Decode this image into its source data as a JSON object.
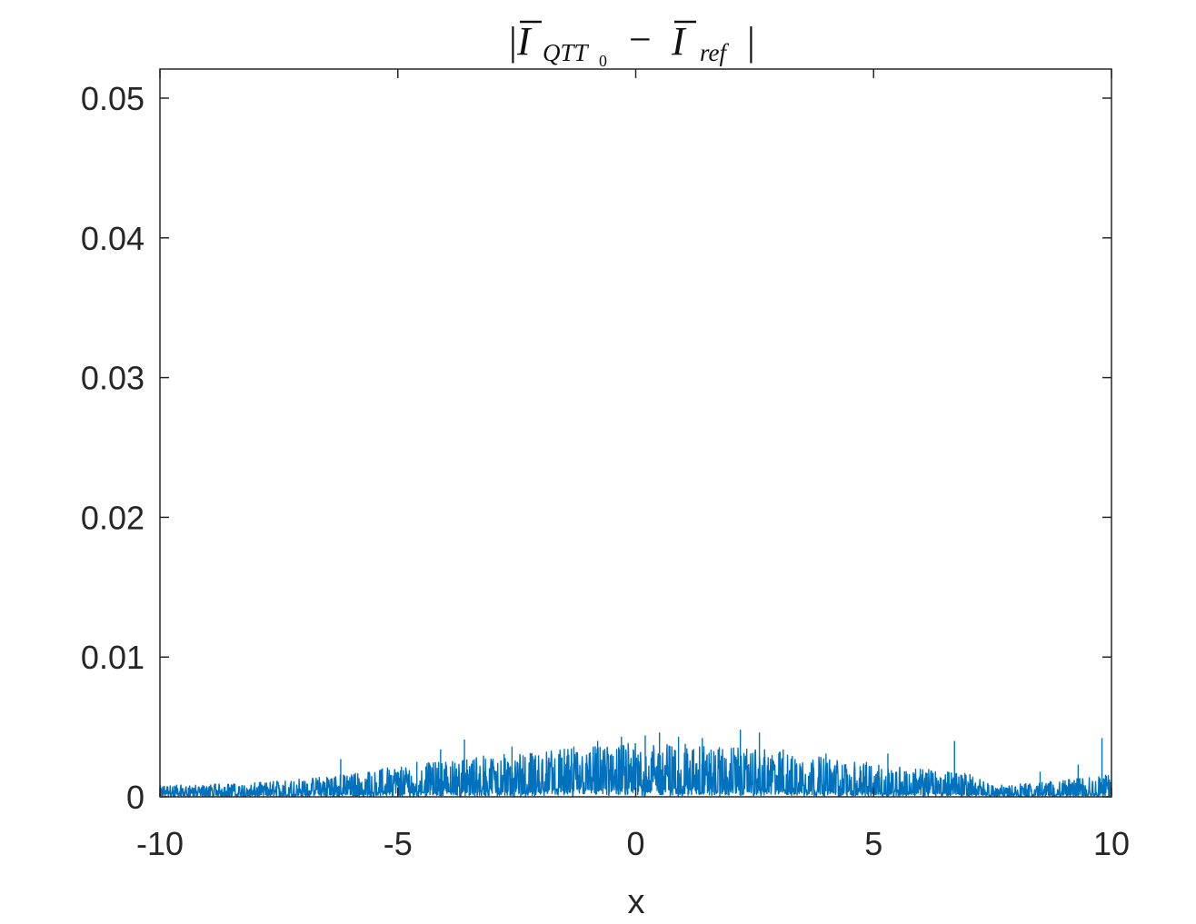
{
  "chart_data": {
    "type": "line",
    "title": {
      "open_bar": "|",
      "term1_symbol": "I",
      "term1_subscript": "QTT",
      "term1_subsubscript": "0",
      "operator": "−",
      "term2_symbol": "I",
      "term2_subscript": "ref",
      "close_bar": "|"
    },
    "xlabel": "x",
    "ylabel": "",
    "xlim": [
      -10,
      10
    ],
    "ylim": [
      0,
      0.052
    ],
    "xticks": [
      -10,
      -5,
      0,
      5,
      10
    ],
    "xtick_labels": [
      "-10",
      "-5",
      "0",
      "5",
      "10"
    ],
    "yticks": [
      0,
      0.01,
      0.02,
      0.03,
      0.04,
      0.05
    ],
    "ytick_labels": [
      "0",
      "0.01",
      "0.02",
      "0.03",
      "0.04",
      "0.05"
    ],
    "grid": false,
    "series": [
      {
        "color": "#0072BD",
        "envelope_x": [
          -10,
          -9,
          -8,
          -7,
          -6,
          -5,
          -4,
          -3,
          -2,
          -1,
          0,
          1,
          2,
          3,
          4,
          5,
          6,
          7,
          7.5,
          8,
          9,
          10
        ],
        "envelope_max": [
          0.0008,
          0.0009,
          0.001,
          0.0013,
          0.0017,
          0.0022,
          0.0026,
          0.003,
          0.0033,
          0.0036,
          0.0039,
          0.0038,
          0.0036,
          0.0033,
          0.0028,
          0.0024,
          0.002,
          0.0017,
          0.0008,
          0.0009,
          0.0012,
          0.0016
        ],
        "peaks": [
          {
            "x": -6.2,
            "y": 0.0027
          },
          {
            "x": -4.6,
            "y": 0.0025
          },
          {
            "x": -4.1,
            "y": 0.0034
          },
          {
            "x": -3.6,
            "y": 0.0041
          },
          {
            "x": -2.6,
            "y": 0.0036
          },
          {
            "x": -1.3,
            "y": 0.0036
          },
          {
            "x": -0.8,
            "y": 0.004
          },
          {
            "x": -0.3,
            "y": 0.0043
          },
          {
            "x": 0.2,
            "y": 0.0044
          },
          {
            "x": 0.5,
            "y": 0.0046
          },
          {
            "x": 0.9,
            "y": 0.0043
          },
          {
            "x": 1.4,
            "y": 0.0042
          },
          {
            "x": 2.2,
            "y": 0.0048
          },
          {
            "x": 2.6,
            "y": 0.0046
          },
          {
            "x": 3.1,
            "y": 0.0034
          },
          {
            "x": 4.0,
            "y": 0.0031
          },
          {
            "x": 5.3,
            "y": 0.0031
          },
          {
            "x": 6.7,
            "y": 0.004
          },
          {
            "x": 8.5,
            "y": 0.0018
          },
          {
            "x": 9.3,
            "y": 0.0023
          },
          {
            "x": 9.8,
            "y": 0.0042
          }
        ]
      }
    ]
  }
}
